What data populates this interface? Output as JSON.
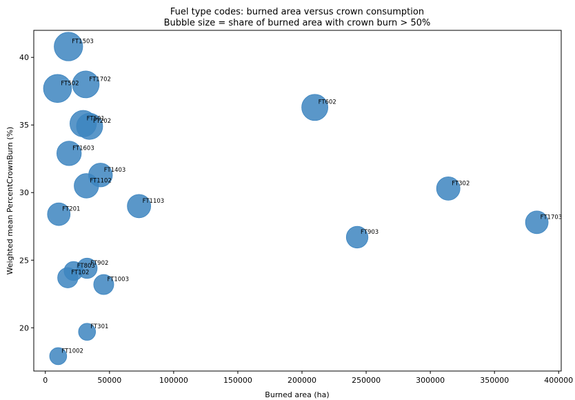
{
  "chart_data": {
    "type": "scatter",
    "title": "Fuel type codes: burned area versus crown consumption",
    "subtitle": "Bubble size = share of burned area with crown burn > 50%",
    "xlabel": "Burned area (ha)",
    "ylabel": "Weighted mean PercentCrownBurn (%)",
    "xlim": [
      -9000,
      402000
    ],
    "ylim": [
      16.8,
      42.0
    ],
    "xticks": [
      0,
      50000,
      100000,
      150000,
      200000,
      250000,
      300000,
      350000,
      400000
    ],
    "xtick_labels": [
      "0",
      "50000",
      "100000",
      "150000",
      "200000",
      "250000",
      "300000",
      "350000",
      "400000"
    ],
    "yticks": [
      20,
      25,
      30,
      35,
      40
    ],
    "ytick_labels": [
      "20",
      "25",
      "30",
      "35",
      "40"
    ],
    "grid": false,
    "color": "#3d85c0",
    "points": [
      {
        "label": "FT1503",
        "x": 18000,
        "y": 40.8,
        "share": 0.95
      },
      {
        "label": "FT1702",
        "x": 31500,
        "y": 38.0,
        "share": 0.84
      },
      {
        "label": "FT502",
        "x": 9500,
        "y": 37.7,
        "share": 0.92
      },
      {
        "label": "FT602",
        "x": 210000,
        "y": 36.3,
        "share": 0.8
      },
      {
        "label": "FT501",
        "x": 29500,
        "y": 35.1,
        "share": 0.82
      },
      {
        "label": "FT202",
        "x": 34500,
        "y": 34.9,
        "share": 0.8
      },
      {
        "label": "FT1603",
        "x": 18500,
        "y": 32.9,
        "share": 0.7
      },
      {
        "label": "FT1403",
        "x": 43000,
        "y": 31.3,
        "share": 0.66
      },
      {
        "label": "FT1102",
        "x": 32000,
        "y": 30.5,
        "share": 0.7
      },
      {
        "label": "FT302",
        "x": 314000,
        "y": 30.3,
        "share": 0.64
      },
      {
        "label": "FT1103",
        "x": 73000,
        "y": 29.0,
        "share": 0.64
      },
      {
        "label": "FT201",
        "x": 10500,
        "y": 28.4,
        "share": 0.6
      },
      {
        "label": "FT1703",
        "x": 383000,
        "y": 27.8,
        "share": 0.6
      },
      {
        "label": "FT903",
        "x": 243000,
        "y": 26.7,
        "share": 0.55
      },
      {
        "label": "FT902",
        "x": 32500,
        "y": 24.4,
        "share": 0.48
      },
      {
        "label": "FT803",
        "x": 22000,
        "y": 24.2,
        "share": 0.42
      },
      {
        "label": "FT102",
        "x": 17500,
        "y": 23.7,
        "share": 0.48
      },
      {
        "label": "FT1003",
        "x": 45500,
        "y": 23.2,
        "share": 0.47
      },
      {
        "label": "FT301",
        "x": 32500,
        "y": 19.7,
        "share": 0.34
      },
      {
        "label": "FT1002",
        "x": 10000,
        "y": 17.9,
        "share": 0.34
      }
    ]
  }
}
